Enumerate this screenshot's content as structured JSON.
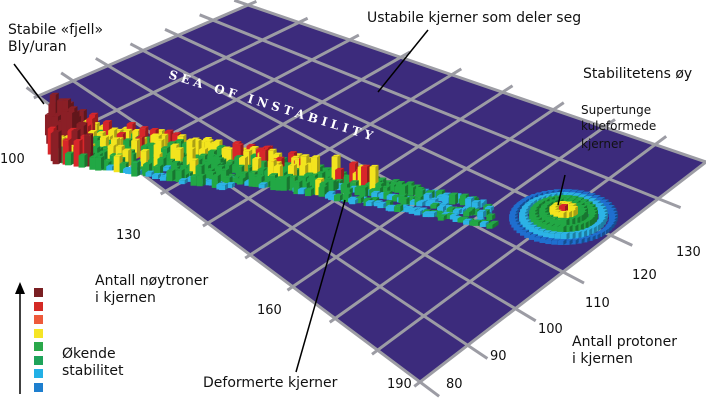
{
  "labels": {
    "stable_line1": "Stabile «fjell»",
    "stable_line2": "Bly/uran",
    "unstable": "Ustabile kjerner som deler seg",
    "island": "Stabilitetens øy",
    "superheavy1": "Supertunge",
    "superheavy2": "kuleformede",
    "superheavy3": "kjerner",
    "neutrons1": "Antall nøytroner",
    "neutrons2": "i kjernen",
    "protons1": "Antall protoner",
    "protons2": "i kjernen",
    "deformed": "Deformerte kjerner",
    "stability1": "Økende",
    "stability2": "stabilitet",
    "sea": "SEA OF INSTABILITY"
  },
  "neutron_ticks": [
    "100",
    "130",
    "160",
    "190"
  ],
  "proton_ticks": [
    "80",
    "90",
    "100",
    "110",
    "120",
    "130"
  ],
  "legend_colors": [
    "#7a1f22",
    "#d42a25",
    "#ee5a3b",
    "#f5e526",
    "#2aa84a",
    "#1ea35a",
    "#22b0e6",
    "#1e7fcf"
  ],
  "colors": {
    "sea": "#3c2b7c",
    "grid": "#9c9ca4",
    "dark_red": "#8b1f26",
    "red": "#d8262a",
    "yellow": "#f3e41e",
    "green": "#22a845",
    "light_blue": "#2cb3e6",
    "blue": "#1f6fcf"
  }
}
